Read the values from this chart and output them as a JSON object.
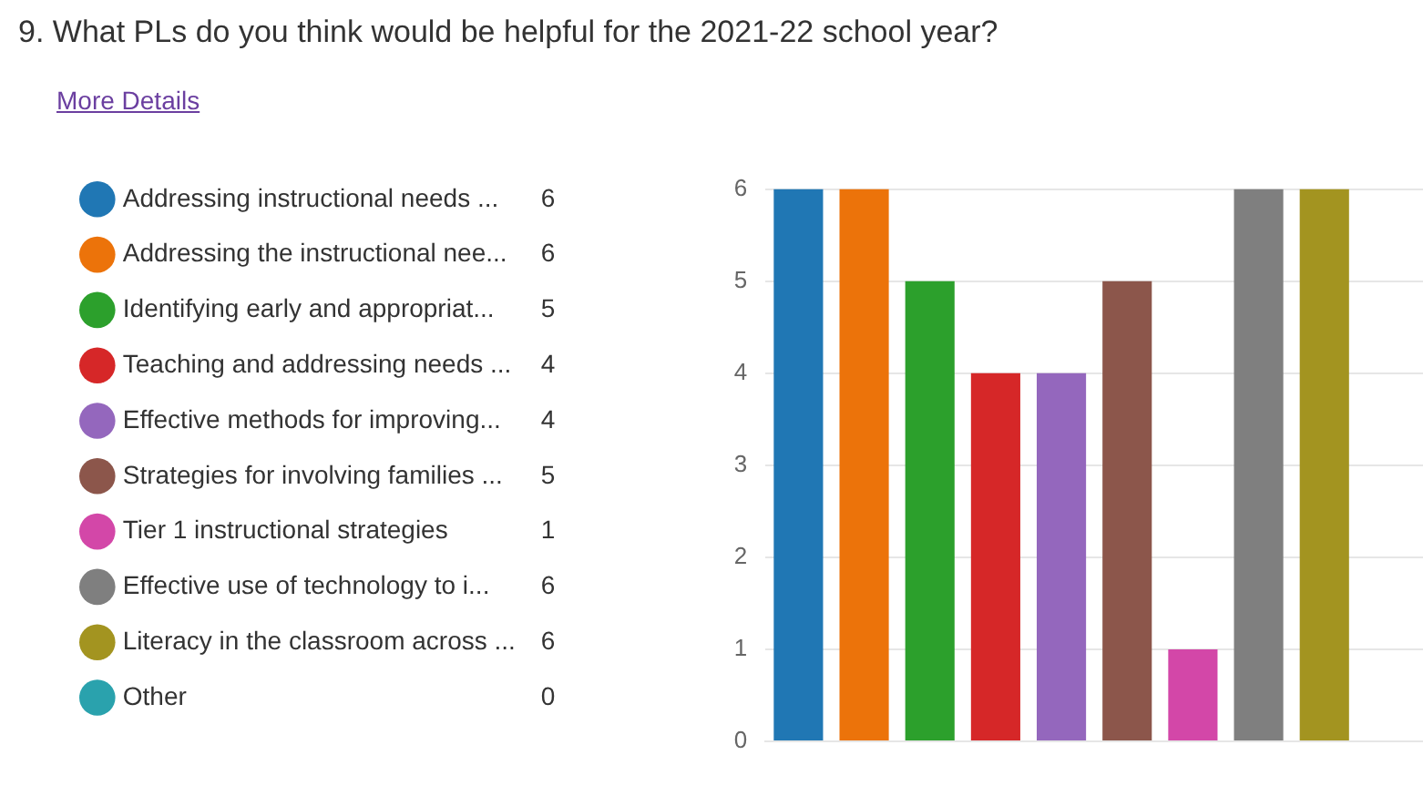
{
  "chart_data": {
    "type": "bar",
    "title": "9. What PLs do you think would be helpful for the 2021-22 school year?",
    "annotations": [
      "More Details",
      "6",
      "6",
      "5",
      "4",
      "4",
      "5",
      "1",
      "6",
      "6",
      "0"
    ],
    "categories": [
      null
    ],
    "series": [
      {
        "name": "Addressing instructional needs ...",
        "color": "#2077b4",
        "values": [
          6
        ]
      },
      {
        "name": "Addressing the instructional nee...",
        "color": "#ec730a",
        "values": [
          6
        ]
      },
      {
        "name": "Identifying early and appropriat...",
        "color": "#2ca02c",
        "values": [
          5
        ]
      },
      {
        "name": "Teaching and addressing needs ...",
        "color": "#d62728",
        "values": [
          4
        ]
      },
      {
        "name": "Effective methods for improving...",
        "color": "#9467bd",
        "values": [
          4
        ]
      },
      {
        "name": "Strategies for involving families ...",
        "color": "#8c564b",
        "values": [
          5
        ]
      },
      {
        "name": "Tier 1 instructional strategies",
        "color": "#d347a8",
        "values": [
          1
        ]
      },
      {
        "name": "Effective use of technology to i...",
        "color": "#7f7f7f",
        "values": [
          6
        ]
      },
      {
        "name": "Literacy in the classroom across ...",
        "color": "#a39420",
        "values": [
          6
        ]
      },
      {
        "name": "Other",
        "color": "#2aa2ad",
        "values": [
          0
        ]
      }
    ],
    "ylim": [
      0,
      6
    ],
    "yticks": [
      0,
      1,
      2,
      3,
      4,
      5,
      6
    ],
    "grid": "y",
    "legend": "left",
    "tick_labels": "y"
  }
}
